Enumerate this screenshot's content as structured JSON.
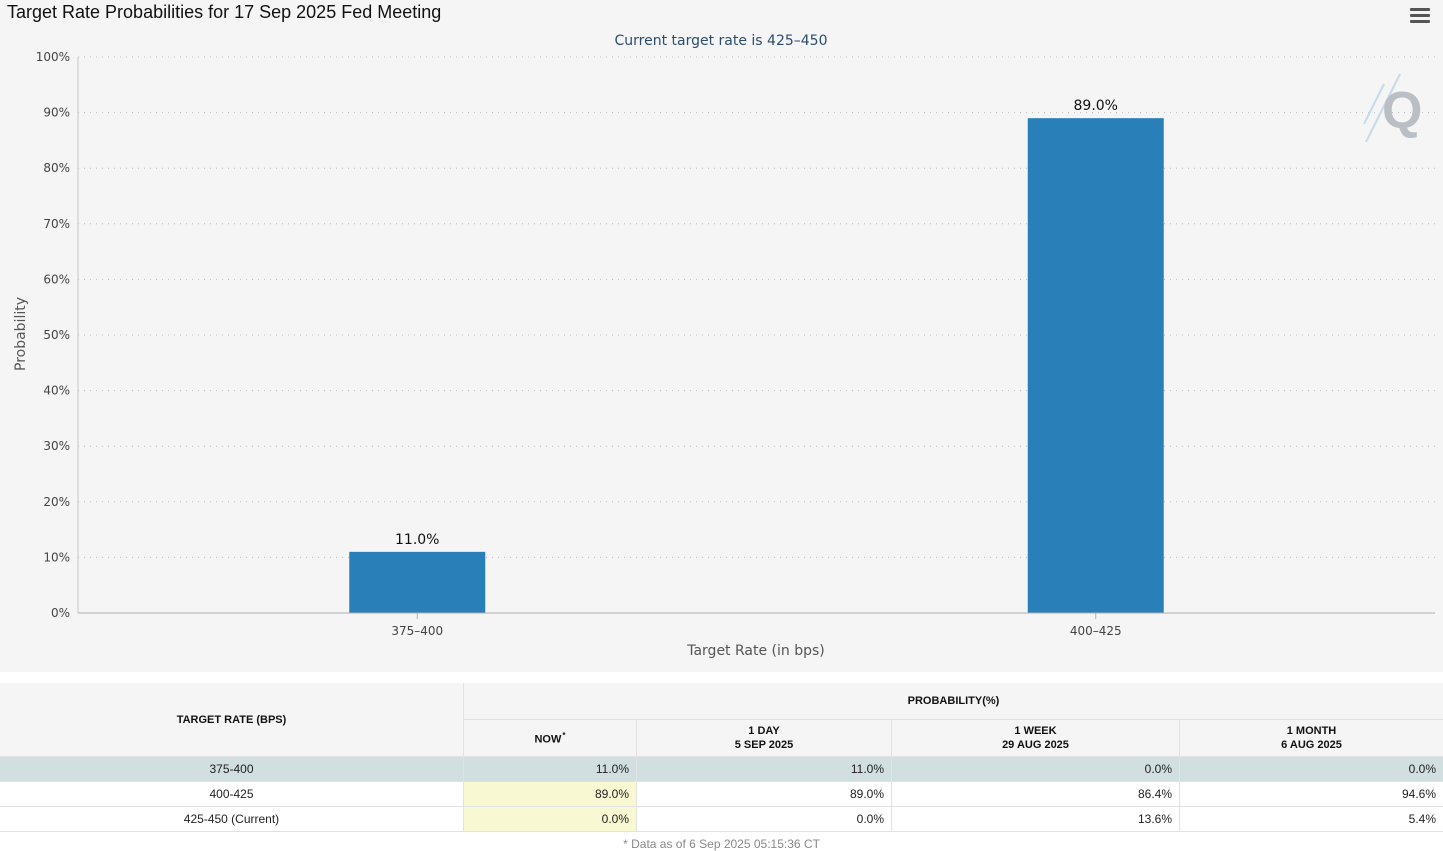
{
  "title": "Target Rate Probabilities for 17 Sep 2025 Fed Meeting",
  "chart_data": {
    "type": "bar",
    "title": "Target Rate Probabilities for 17 Sep 2025 Fed Meeting",
    "subtitle": "Current target rate is 425–450",
    "categories": [
      "375–400",
      "400–425"
    ],
    "values": [
      11.0,
      89.0
    ],
    "data_labels": [
      "11.0%",
      "89.0%"
    ],
    "xlabel": "Target Rate (in bps)",
    "ylabel": "Probability",
    "ylim": [
      0,
      100
    ],
    "yticks": [
      0,
      10,
      20,
      30,
      40,
      50,
      60,
      70,
      80,
      90,
      100
    ],
    "ytick_labels": [
      "0%",
      "10%",
      "20%",
      "30%",
      "40%",
      "50%",
      "60%",
      "70%",
      "80%",
      "90%",
      "100%"
    ],
    "grid": true,
    "bar_color": "#2980b9"
  },
  "colors": {
    "bar": "#2980b9",
    "subtitle": "#2c4d6e",
    "row_highlight": "#d1dfe0",
    "now_column": "#f8f8d3"
  },
  "watermark": {
    "letter": "Q"
  },
  "menu": {
    "icon": "hamburger-menu-icon"
  },
  "table": {
    "rate_header": "TARGET RATE (BPS)",
    "group_header": "PROBABILITY(%)",
    "columns": [
      {
        "line1": "NOW",
        "line2": "",
        "asterisk": "*"
      },
      {
        "line1": "1 DAY",
        "line2": "5 SEP 2025"
      },
      {
        "line1": "1 WEEK",
        "line2": "29 AUG 2025"
      },
      {
        "line1": "1 MONTH",
        "line2": "6 AUG 2025"
      }
    ],
    "rows": [
      {
        "rate": "375-400",
        "values": [
          "11.0%",
          "11.0%",
          "0.0%",
          "0.0%"
        ]
      },
      {
        "rate": "400-425",
        "values": [
          "89.0%",
          "89.0%",
          "86.4%",
          "94.6%"
        ]
      },
      {
        "rate": "425-450 (Current)",
        "values": [
          "0.0%",
          "0.0%",
          "13.6%",
          "5.4%"
        ]
      }
    ]
  },
  "footnote": "* Data as of 6 Sep 2025 05:15:36 CT"
}
